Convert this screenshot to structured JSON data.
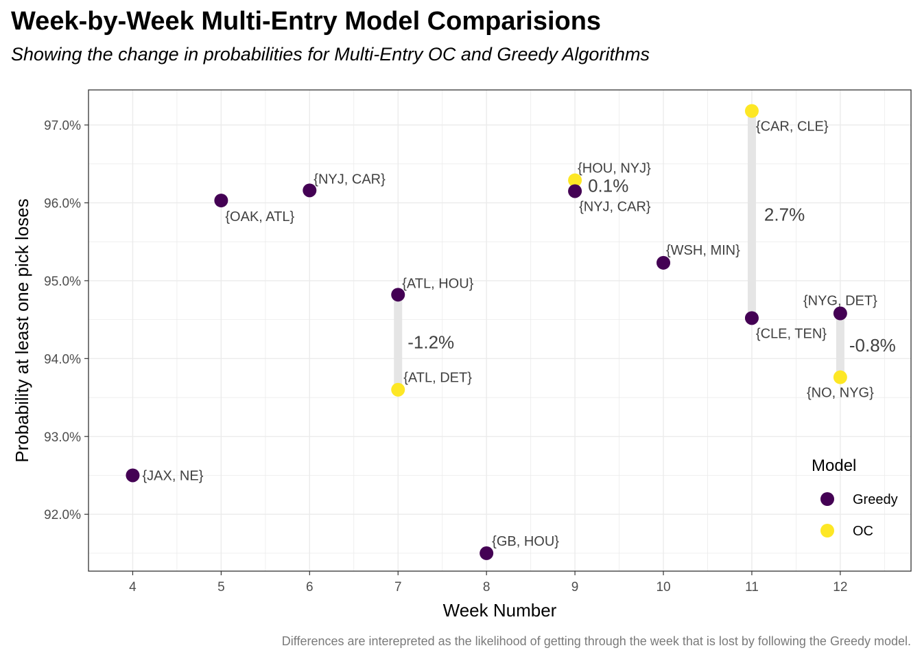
{
  "title": "Week-by-Week Multi-Entry Model Comparisions",
  "subtitle": "Showing the change in probabilities for Multi-Entry OC and Greedy Algorithms",
  "caption": "Differences are interepreted as the likelihood of getting through the week that is lost by following the Greedy model.",
  "colors": {
    "greedy": "#440154",
    "oc": "#FDE725",
    "segment": "#e5e5e5",
    "grid": "#ebebeb",
    "panel_border": "#333333"
  },
  "chart_data": {
    "type": "scatter",
    "xlabel": "Week Number",
    "ylabel": "Probability at least one pick loses",
    "xlim": [
      3.5,
      12.8
    ],
    "ylim": [
      91.27,
      97.45
    ],
    "x_ticks": [
      4,
      5,
      6,
      7,
      8,
      9,
      10,
      11,
      12
    ],
    "x_tick_labels": [
      "4",
      "5",
      "6",
      "7",
      "8",
      "9",
      "10",
      "11",
      "12"
    ],
    "y_ticks": [
      92,
      93,
      94,
      95,
      96,
      97
    ],
    "y_tick_labels": [
      "92.0%",
      "93.0%",
      "94.0%",
      "95.0%",
      "96.0%",
      "97.0%"
    ],
    "grid": true,
    "legend": {
      "title": "Model",
      "position": "right",
      "entries": [
        {
          "name": "Greedy",
          "color_key": "greedy"
        },
        {
          "name": "OC",
          "color_key": "oc"
        }
      ]
    },
    "points": [
      {
        "week": 4,
        "value": 92.5,
        "model": "Greedy",
        "label": "{JAX, NE}"
      },
      {
        "week": 5,
        "value": 96.03,
        "model": "Greedy",
        "label": "{OAK, ATL}"
      },
      {
        "week": 6,
        "value": 96.16,
        "model": "Greedy",
        "label": "{NYJ, CAR}"
      },
      {
        "week": 7,
        "value": 94.82,
        "model": "Greedy",
        "label": "{ATL, HOU}"
      },
      {
        "week": 7,
        "value": 93.6,
        "model": "OC",
        "label": "{ATL, DET}"
      },
      {
        "week": 8,
        "value": 91.5,
        "model": "Greedy",
        "label": "{GB, HOU}"
      },
      {
        "week": 9,
        "value": 96.29,
        "model": "OC",
        "label": "{HOU, NYJ}"
      },
      {
        "week": 9,
        "value": 96.15,
        "model": "Greedy",
        "label": "{NYJ, CAR}"
      },
      {
        "week": 10,
        "value": 95.23,
        "model": "Greedy",
        "label": "{WSH, MIN}"
      },
      {
        "week": 11,
        "value": 97.18,
        "model": "OC",
        "label": "{CAR, CLE}"
      },
      {
        "week": 11,
        "value": 94.52,
        "model": "Greedy",
        "label": "{CLE, TEN}"
      },
      {
        "week": 12,
        "value": 94.58,
        "model": "Greedy",
        "label": "{NYG, DET}"
      },
      {
        "week": 12,
        "value": 93.76,
        "model": "OC",
        "label": "{NO, NYG}"
      }
    ],
    "differences": [
      {
        "week": 7,
        "from": 94.82,
        "to": 93.6,
        "label": "-1.2%"
      },
      {
        "week": 9,
        "from": 96.15,
        "to": 96.29,
        "label": "0.1%"
      },
      {
        "week": 11,
        "from": 94.52,
        "to": 97.18,
        "label": "2.7%"
      },
      {
        "week": 12,
        "from": 94.58,
        "to": 93.76,
        "label": "-0.8%"
      }
    ]
  }
}
